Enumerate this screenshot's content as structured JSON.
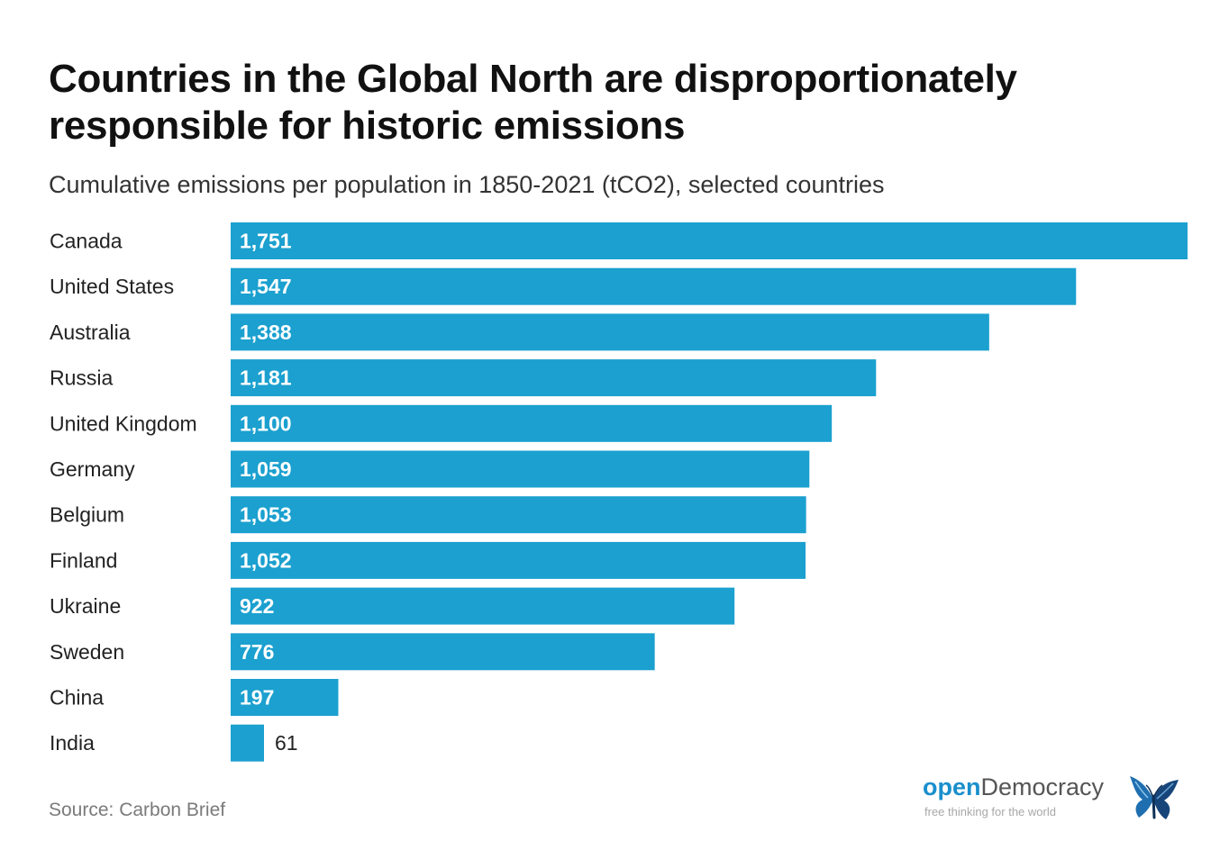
{
  "title": "Countries in the Global North are disproportionately responsible for historic emissions",
  "subtitle": "Cumulative emissions per population in 1850-2021 (tCO2), selected countries",
  "source": "Source: Carbon Brief",
  "logo": {
    "open": "open",
    "democracy": "Democracy",
    "tagline": "free thinking for the world",
    "icon": "butterfly-icon"
  },
  "colors": {
    "bar": "#1ba0cf",
    "label_inside": "#ffffff",
    "label_outside": "#222222",
    "category_text": "#222222"
  },
  "chart_data": {
    "type": "bar",
    "orientation": "horizontal",
    "title": "Countries in the Global North are disproportionately responsible for historic emissions",
    "subtitle": "Cumulative emissions per population in 1850-2021 (tCO2), selected countries",
    "categories": [
      "Canada",
      "United States",
      "Australia",
      "Russia",
      "United Kingdom",
      "Germany",
      "Belgium",
      "Finland",
      "Ukraine",
      "Sweden",
      "China",
      "India"
    ],
    "values": [
      1751,
      1547,
      1388,
      1181,
      1100,
      1059,
      1053,
      1052,
      922,
      776,
      197,
      61
    ],
    "value_labels": [
      "1,751",
      "1,547",
      "1,388",
      "1,181",
      "1,100",
      "1,059",
      "1,053",
      "1,052",
      "922",
      "776",
      "197",
      "61"
    ],
    "xlim": [
      0,
      1751
    ],
    "grid": false,
    "legend": "none"
  }
}
